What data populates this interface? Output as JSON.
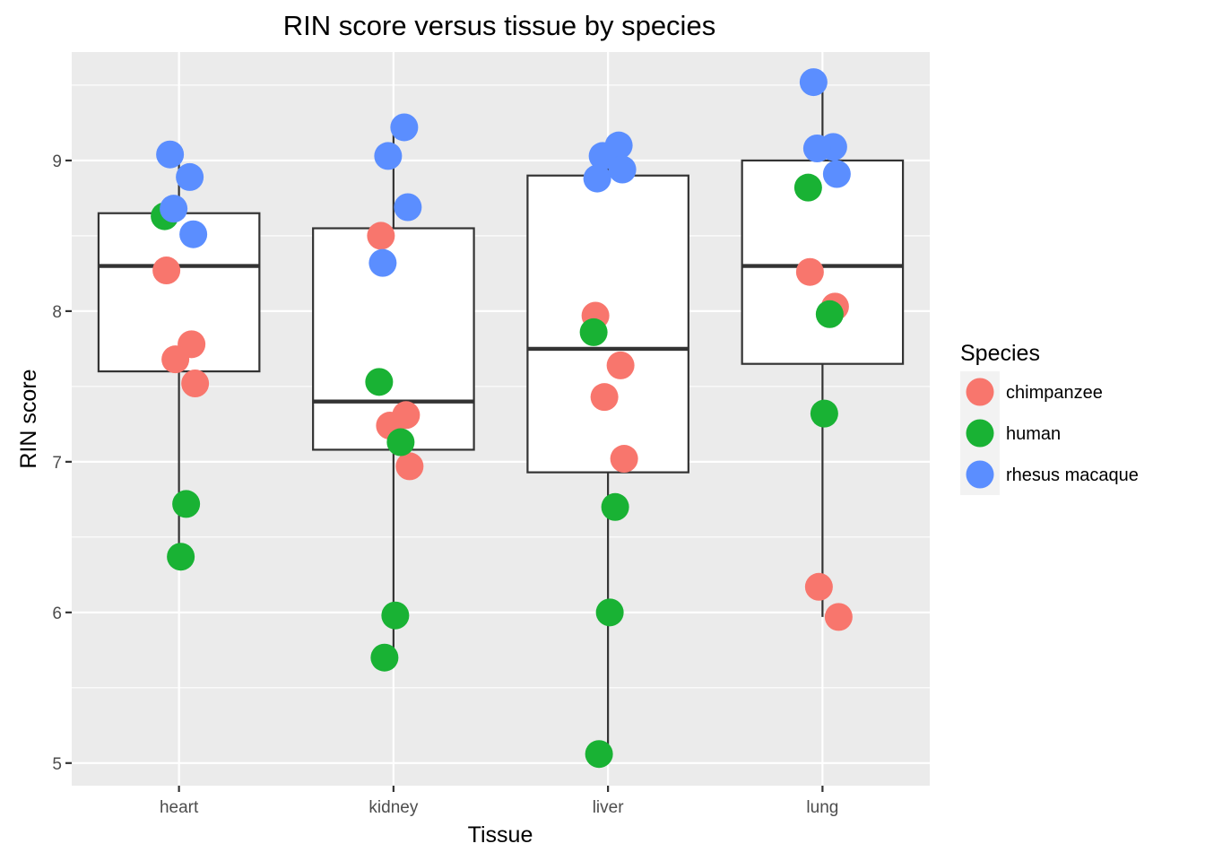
{
  "chart_data": {
    "type": "box",
    "title": "RIN score versus tissue by species",
    "xlabel": "Tissue",
    "ylabel": "RIN score",
    "categories": [
      "heart",
      "kidney",
      "liver",
      "lung"
    ],
    "ylim": [
      4.85,
      9.72
    ],
    "yticks": [
      5,
      6,
      7,
      8,
      9
    ],
    "grid": true,
    "legend": {
      "title": "Species",
      "position": "right",
      "entries": [
        {
          "name": "chimpanzee",
          "color": "#F8766D"
        },
        {
          "name": "human",
          "color": "#19B234"
        },
        {
          "name": "rhesus macaque",
          "color": "#5B8EFF"
        }
      ]
    },
    "boxes": [
      {
        "category": "heart",
        "min": 6.37,
        "q1": 7.6,
        "median": 8.3,
        "q3": 8.65,
        "max": 9.04
      },
      {
        "category": "kidney",
        "min": 5.7,
        "q1": 7.08,
        "median": 7.4,
        "q3": 8.55,
        "max": 9.22
      },
      {
        "category": "liver",
        "min": 5.06,
        "q1": 6.93,
        "median": 7.75,
        "q3": 8.9,
        "max": 9.1
      },
      {
        "category": "lung",
        "min": 5.97,
        "q1": 7.65,
        "median": 8.3,
        "q3": 9.0,
        "max": 9.52
      }
    ],
    "series": [
      {
        "name": "chimpanzee",
        "color": "#F8766D",
        "points": [
          {
            "category": "heart",
            "y": 8.27
          },
          {
            "category": "heart",
            "y": 7.78
          },
          {
            "category": "heart",
            "y": 7.68
          },
          {
            "category": "heart",
            "y": 7.52
          },
          {
            "category": "kidney",
            "y": 8.5
          },
          {
            "category": "kidney",
            "y": 7.31
          },
          {
            "category": "kidney",
            "y": 7.24
          },
          {
            "category": "kidney",
            "y": 6.97
          },
          {
            "category": "liver",
            "y": 7.97
          },
          {
            "category": "liver",
            "y": 7.64
          },
          {
            "category": "liver",
            "y": 7.43
          },
          {
            "category": "liver",
            "y": 7.02
          },
          {
            "category": "lung",
            "y": 8.26
          },
          {
            "category": "lung",
            "y": 8.03
          },
          {
            "category": "lung",
            "y": 6.17
          },
          {
            "category": "lung",
            "y": 5.97
          }
        ]
      },
      {
        "name": "human",
        "color": "#19B234",
        "points": [
          {
            "category": "heart",
            "y": 8.63
          },
          {
            "category": "heart",
            "y": 6.72
          },
          {
            "category": "heart",
            "y": 6.37
          },
          {
            "category": "kidney",
            "y": 7.53
          },
          {
            "category": "kidney",
            "y": 7.13
          },
          {
            "category": "kidney",
            "y": 5.98
          },
          {
            "category": "kidney",
            "y": 5.7
          },
          {
            "category": "liver",
            "y": 7.86
          },
          {
            "category": "liver",
            "y": 6.7
          },
          {
            "category": "liver",
            "y": 6.0
          },
          {
            "category": "liver",
            "y": 5.06
          },
          {
            "category": "lung",
            "y": 8.82
          },
          {
            "category": "lung",
            "y": 7.98
          },
          {
            "category": "lung",
            "y": 7.32
          }
        ]
      },
      {
        "name": "rhesus macaque",
        "color": "#5B8EFF",
        "points": [
          {
            "category": "heart",
            "y": 9.04
          },
          {
            "category": "heart",
            "y": 8.89
          },
          {
            "category": "heart",
            "y": 8.68
          },
          {
            "category": "heart",
            "y": 8.51
          },
          {
            "category": "kidney",
            "y": 9.22
          },
          {
            "category": "kidney",
            "y": 9.03
          },
          {
            "category": "kidney",
            "y": 8.69
          },
          {
            "category": "kidney",
            "y": 8.32
          },
          {
            "category": "liver",
            "y": 9.1
          },
          {
            "category": "liver",
            "y": 9.03
          },
          {
            "category": "liver",
            "y": 8.94
          },
          {
            "category": "liver",
            "y": 8.88
          },
          {
            "category": "lung",
            "y": 9.52
          },
          {
            "category": "lung",
            "y": 9.09
          },
          {
            "category": "lung",
            "y": 9.08
          },
          {
            "category": "lung",
            "y": 8.91
          }
        ]
      }
    ]
  }
}
